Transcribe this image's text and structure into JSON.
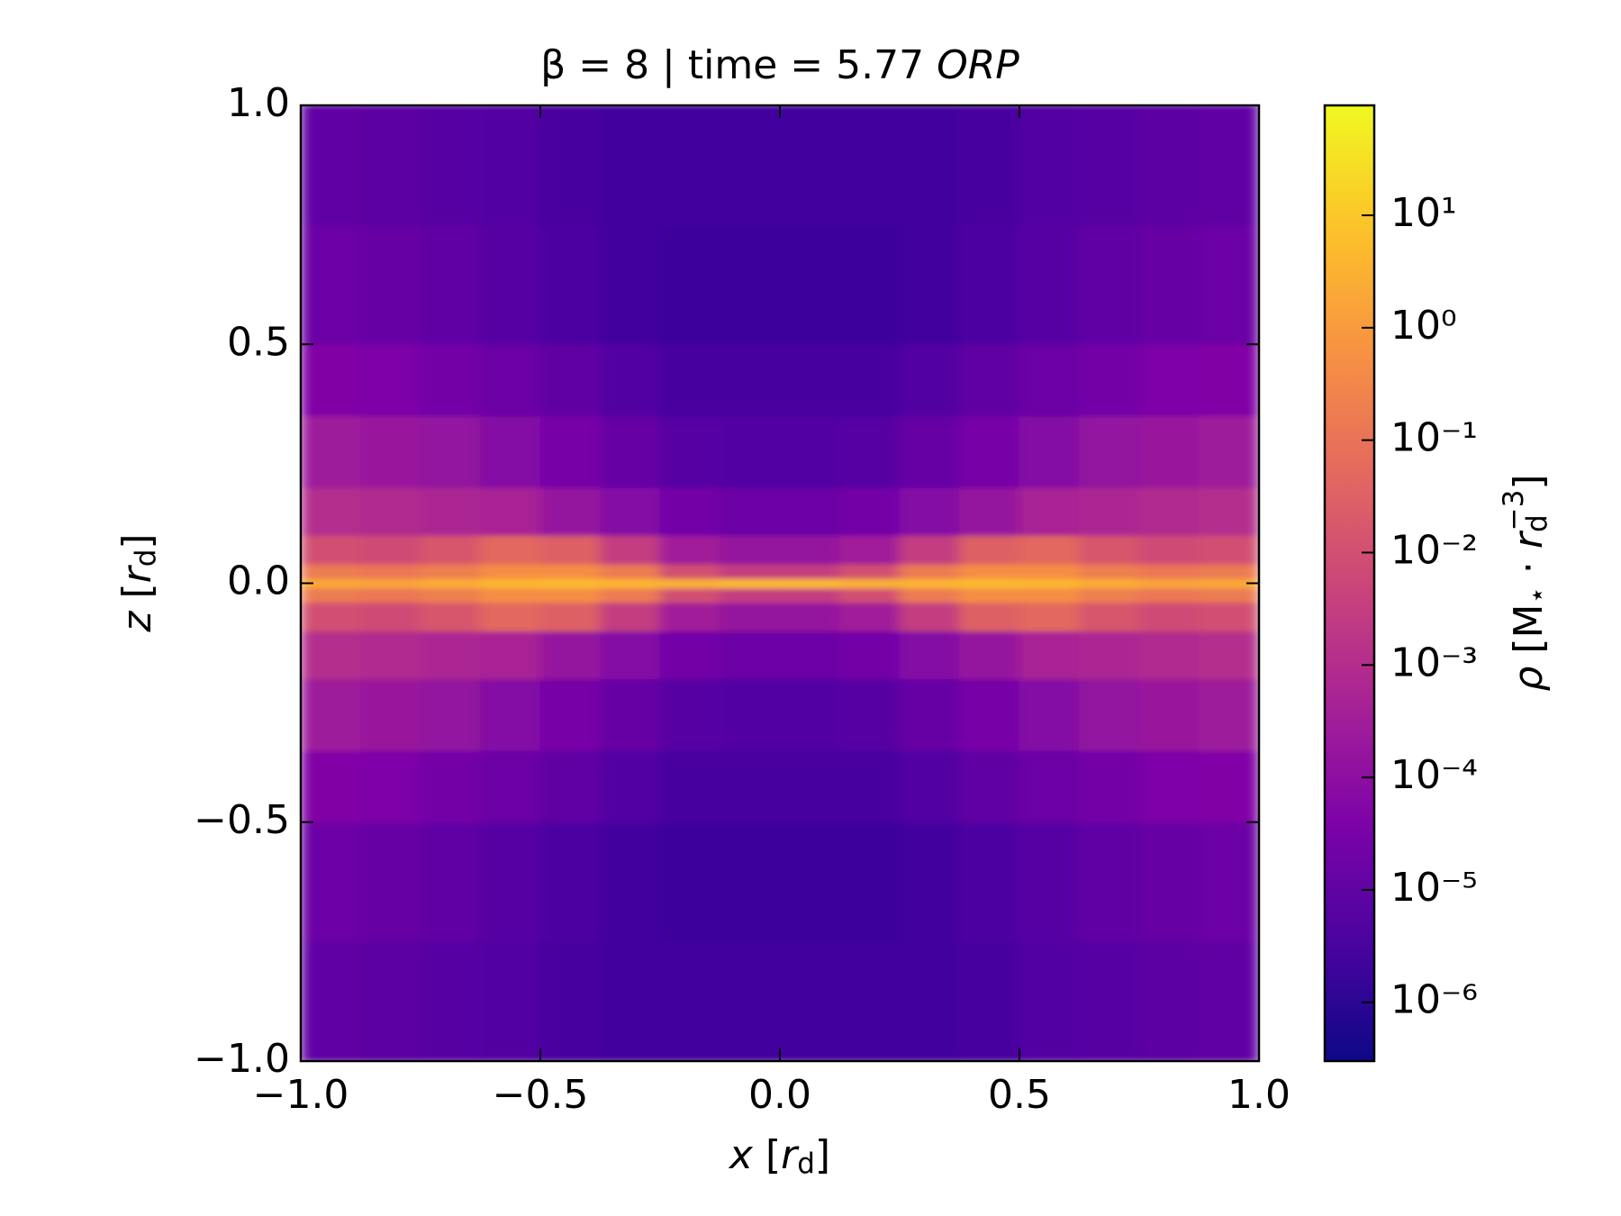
{
  "chart_data": {
    "type": "heatmap",
    "title": [
      "β = 8 | time = 5.77 ",
      "ORP"
    ],
    "xlabel": [
      "x",
      " [",
      "r",
      "d",
      "]"
    ],
    "ylabel": [
      "z",
      " [",
      "r",
      "d",
      "]"
    ],
    "colorbar_label": [
      "ρ",
      " [M",
      "⋆",
      " · ",
      "r",
      "d",
      "−3",
      "]"
    ],
    "colormap": "plasma",
    "log_color_scale": true,
    "clim": [
      3e-07,
      95
    ],
    "xlim": [
      -1,
      1
    ],
    "ylim": [
      -1,
      1
    ],
    "xticks": [
      {
        "value": -1,
        "label": "−1.0"
      },
      {
        "value": -0.5,
        "label": "−0.5"
      },
      {
        "value": 0,
        "label": "0.0"
      },
      0.5,
      {
        "value": 1,
        "label": "1.0"
      }
    ],
    "yticks": [
      {
        "value": -1,
        "label": "−1.0"
      },
      {
        "value": -0.5,
        "label": "−0.5"
      },
      {
        "value": 0,
        "label": "0.0"
      },
      0.5,
      {
        "value": 1,
        "label": "1.0"
      }
    ],
    "cticks": [
      {
        "value": 1e-06,
        "label": "10⁻⁶"
      },
      {
        "value": 1e-05,
        "label": "10⁻⁵"
      },
      {
        "value": 0.0001,
        "label": "10⁻⁴"
      },
      {
        "value": 0.001,
        "label": "10⁻³"
      },
      {
        "value": 0.01,
        "label": "10⁻²"
      },
      {
        "value": 0.1,
        "label": "10⁻¹"
      },
      {
        "value": 1,
        "label": "10⁰"
      },
      {
        "value": 10,
        "label": "10¹"
      }
    ],
    "xbins": [
      -1,
      -0.875,
      -0.75,
      -0.625,
      -0.5,
      -0.375,
      -0.25,
      -0.125,
      0,
      0.125,
      0.25,
      0.375,
      0.5,
      0.625,
      0.75,
      0.875,
      1
    ],
    "ybins": [
      -1,
      -0.75,
      -0.5,
      -0.35,
      -0.2,
      -0.1,
      -0.04,
      -0.01,
      0.01,
      0.04,
      0.1,
      0.2,
      0.35,
      0.5,
      0.75,
      1
    ],
    "values": [
      [
        1e-05,
        8e-06,
        6e-06,
        5e-06,
        3e-06,
        2.5e-06,
        2.5e-06,
        2.5e-06,
        2.5e-06,
        2.5e-06,
        2.5e-06,
        3e-06,
        5e-06,
        6e-06,
        8e-06,
        1e-05
      ],
      [
        1.6e-05,
        1.3e-05,
        1e-05,
        6e-06,
        4e-06,
        2.5e-06,
        2e-06,
        2e-06,
        2e-06,
        2e-06,
        2.5e-06,
        4e-06,
        6e-06,
        1e-05,
        1.3e-05,
        1.6e-05
      ],
      [
        5e-05,
        4e-05,
        2.5e-05,
        1.6e-05,
        1e-05,
        5e-06,
        3e-06,
        3e-06,
        3e-06,
        3e-06,
        5e-06,
        1e-05,
        1.6e-05,
        2.5e-05,
        4e-05,
        5e-05
      ],
      [
        0.00025,
        0.0002,
        0.00013,
        6e-05,
        3e-05,
        1.3e-05,
        6e-06,
        5e-06,
        5e-06,
        6e-06,
        1.3e-05,
        3e-05,
        6e-05,
        0.00013,
        0.0002,
        0.00025
      ],
      [
        0.001,
        0.0008,
        0.0006,
        0.0005,
        0.00016,
        6e-05,
        2.5e-05,
        1.6e-05,
        1.6e-05,
        2.5e-05,
        6e-05,
        0.00016,
        0.0005,
        0.0006,
        0.0008,
        0.001
      ],
      [
        0.01,
        0.008,
        0.016,
        0.05,
        0.03,
        0.003,
        0.0003,
        0.00016,
        0.00016,
        0.0003,
        0.003,
        0.03,
        0.05,
        0.016,
        0.008,
        0.01
      ],
      [
        0.16,
        0.13,
        0.2,
        0.5,
        0.5,
        0.16,
        0.01,
        0.003,
        0.003,
        0.01,
        0.16,
        0.5,
        0.5,
        0.2,
        0.13,
        0.16
      ],
      [
        2,
        1.6,
        2.5,
        4,
        5,
        4,
        3,
        5,
        5,
        3,
        4,
        5,
        4,
        2.5,
        1.6,
        2
      ],
      [
        0.16,
        0.13,
        0.2,
        0.5,
        0.5,
        0.16,
        0.01,
        0.003,
        0.003,
        0.01,
        0.16,
        0.5,
        0.5,
        0.2,
        0.13,
        0.16
      ],
      [
        0.01,
        0.008,
        0.016,
        0.05,
        0.03,
        0.003,
        0.0003,
        0.00016,
        0.00016,
        0.0003,
        0.003,
        0.03,
        0.05,
        0.016,
        0.008,
        0.01
      ],
      [
        0.001,
        0.0008,
        0.0006,
        0.0005,
        0.00016,
        6e-05,
        2.5e-05,
        1.6e-05,
        1.6e-05,
        2.5e-05,
        6e-05,
        0.00016,
        0.0005,
        0.0006,
        0.0008,
        0.001
      ],
      [
        0.00025,
        0.0002,
        0.00013,
        6e-05,
        3e-05,
        1.3e-05,
        6e-06,
        5e-06,
        5e-06,
        6e-06,
        1.3e-05,
        3e-05,
        6e-05,
        0.00013,
        0.0002,
        0.00025
      ],
      [
        5e-05,
        4e-05,
        2.5e-05,
        1.6e-05,
        1e-05,
        5e-06,
        3e-06,
        3e-06,
        3e-06,
        3e-06,
        5e-06,
        1e-05,
        1.6e-05,
        2.5e-05,
        4e-05,
        5e-05
      ],
      [
        1.6e-05,
        1.3e-05,
        1e-05,
        6e-06,
        4e-06,
        2.5e-06,
        2e-06,
        2e-06,
        2e-06,
        2e-06,
        2.5e-06,
        4e-06,
        6e-06,
        1e-05,
        1.3e-05,
        1.6e-05
      ],
      [
        1e-05,
        8e-06,
        6e-06,
        5e-06,
        3e-06,
        2.5e-06,
        2.5e-06,
        2.5e-06,
        2.5e-06,
        2.5e-06,
        2.5e-06,
        3e-06,
        5e-06,
        6e-06,
        8e-06,
        1e-05
      ]
    ]
  }
}
